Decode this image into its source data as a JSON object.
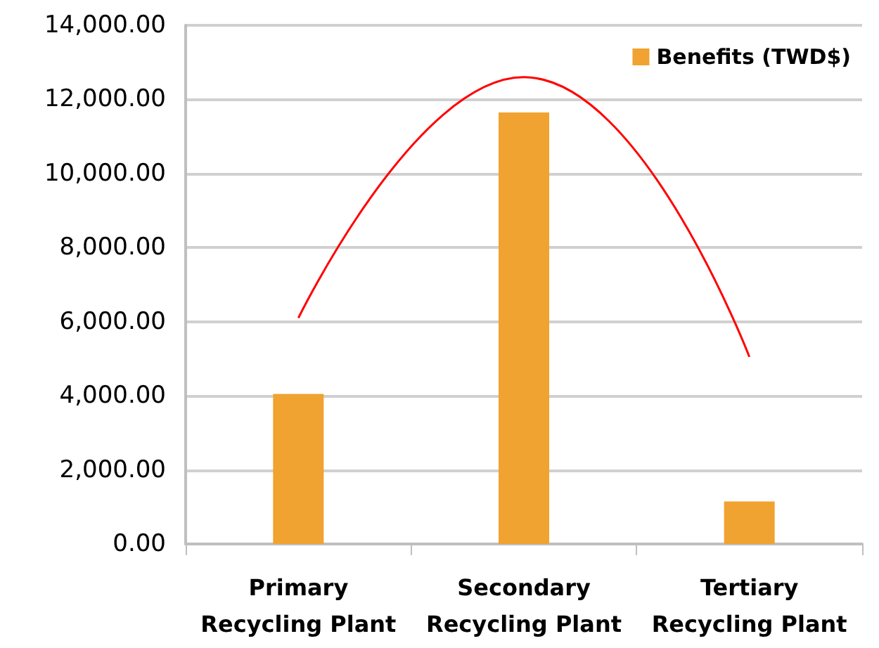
{
  "chart_data": {
    "type": "bar",
    "categories": [
      "Primary\nRecycling Plant",
      "Secondary\nRecycling Plant",
      "Tertiary\nRecycling Plant"
    ],
    "series": [
      {
        "name": "Benefits (TWD$)",
        "color": "#f0a330",
        "values": [
          4050,
          11650,
          1150
        ]
      },
      {
        "type": "line",
        "color": "#ff0000",
        "values": [
          6100,
          12600,
          5050
        ],
        "marker": "none"
      }
    ],
    "ylim": [
      0,
      14000
    ],
    "yticks": [
      {
        "value": 0,
        "label": "0.00"
      },
      {
        "value": 2000,
        "label": "2,000.00"
      },
      {
        "value": 4000,
        "label": "4,000.00"
      },
      {
        "value": 6000,
        "label": "6,000.00"
      },
      {
        "value": 8000,
        "label": "8,000.00"
      },
      {
        "value": 10000,
        "label": "10,000.00"
      },
      {
        "value": 12000,
        "label": "12,000.00"
      },
      {
        "value": 14000,
        "label": "14,000.00"
      }
    ],
    "grid": "y",
    "legend": "top right"
  }
}
